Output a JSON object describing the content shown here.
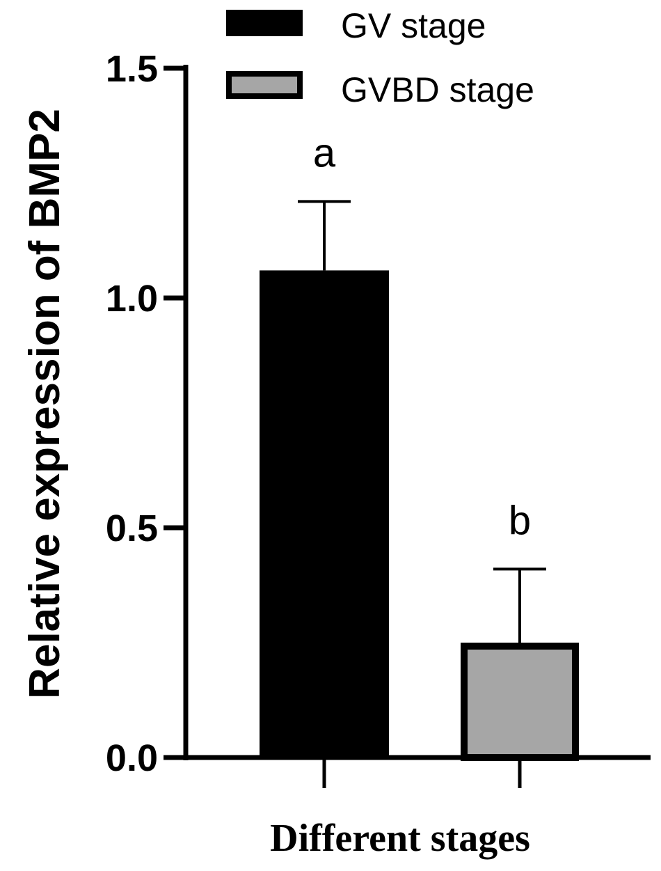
{
  "chart_data": {
    "type": "bar",
    "xlabel": "Different stages",
    "ylabel": "Relative expression of BMP2",
    "ylim": [
      0,
      1.5
    ],
    "yticks": [
      "0.0",
      "0.5",
      "1.0",
      "1.5"
    ],
    "categories": [
      "GV stage",
      "GVBD stage"
    ],
    "series": [
      {
        "name": "GV stage",
        "value": 1.06,
        "error": 0.15,
        "annotation": "a",
        "color": "#000000"
      },
      {
        "name": "GVBD stage",
        "value": 0.25,
        "error": 0.16,
        "annotation": "b",
        "color": "#a6a6a6"
      }
    ],
    "legend": "top"
  }
}
